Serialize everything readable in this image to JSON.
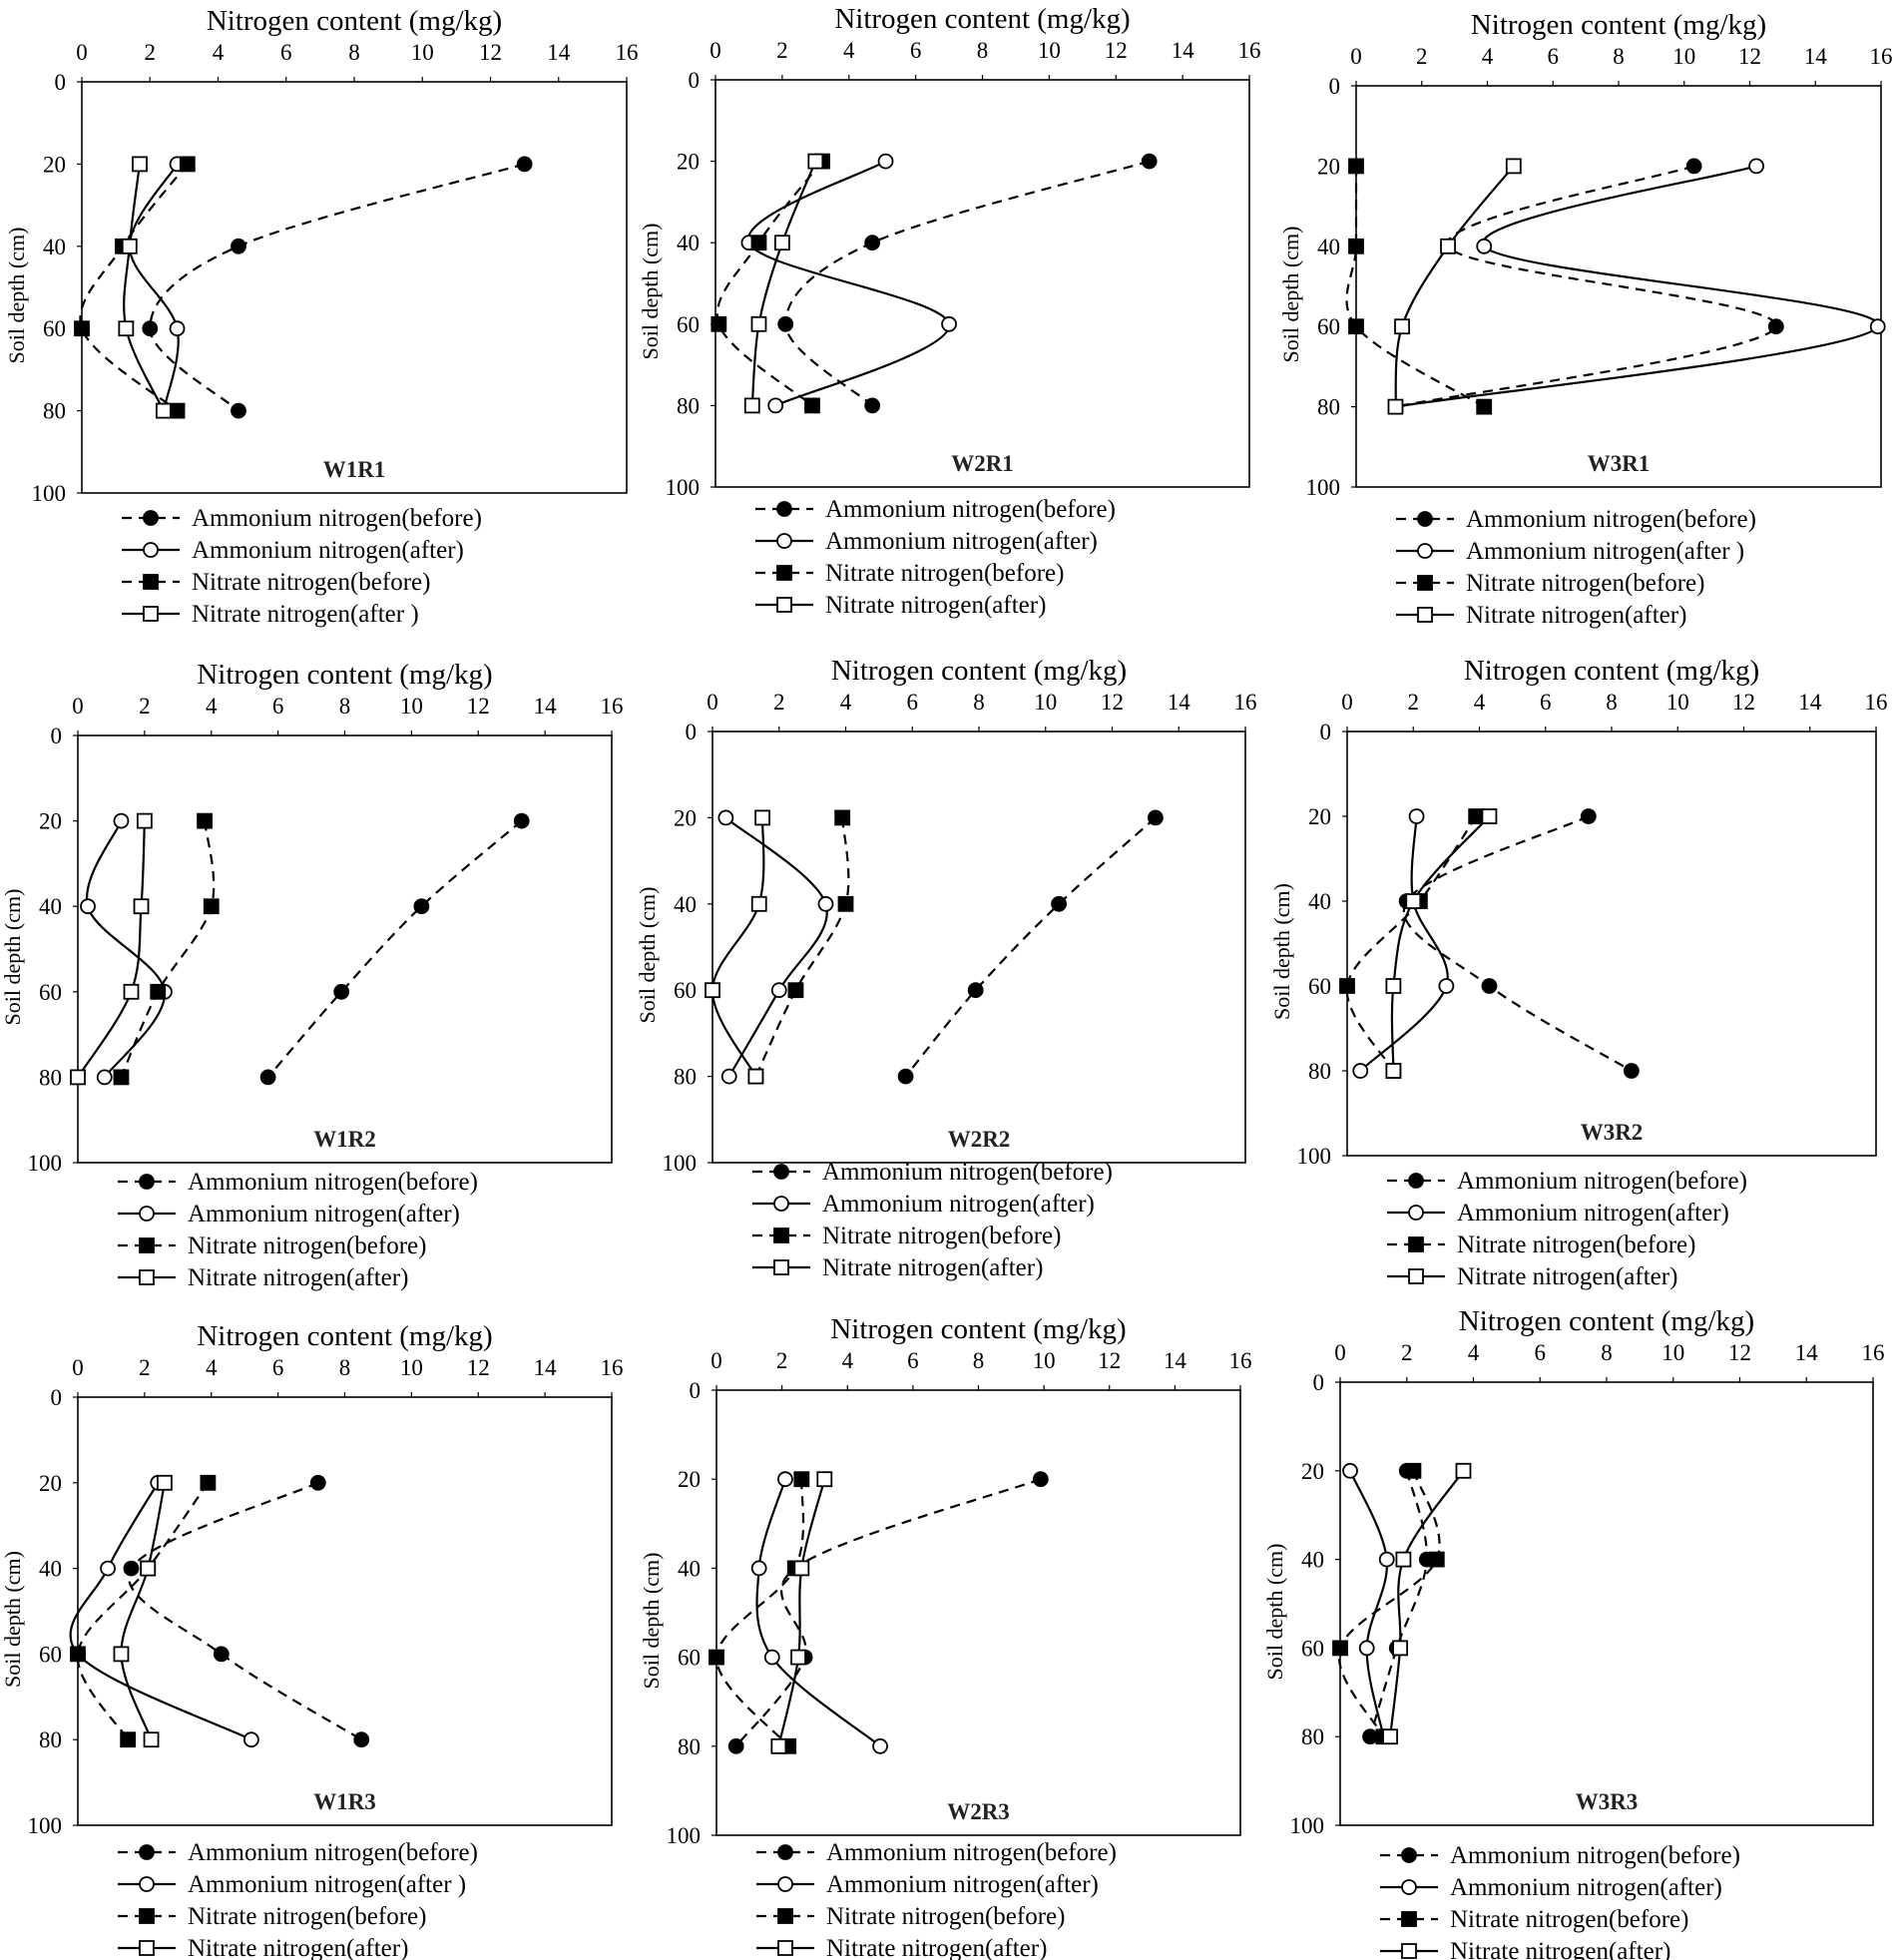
{
  "legend_labels": {
    "ammonium_before": "Ammonium nitrogen(before)",
    "ammonium_after": "Ammonium nitrogen(after)",
    "ammonium_after_sp": "Ammonium nitrogen(after )",
    "nitrate_before": "Nitrate nitrogen(before)",
    "nitrate_after": "Nitrate nitrogen(after)",
    "nitrate_after_sp": "Nitrate nitrogen(after )"
  },
  "chart_data": [
    {
      "type": "line",
      "title": "W1R1",
      "xlabel": "Nitrogen content (mg/kg)",
      "ylabel": "Soil depth (cm)",
      "xlim": [
        0,
        16
      ],
      "ylim": [
        0,
        100
      ],
      "x_ticks": [
        "0",
        "2",
        "4",
        "6",
        "8",
        "10",
        "12",
        "14",
        "16"
      ],
      "y_ticks": [
        "0",
        "20",
        "40",
        "60",
        "80",
        "100"
      ],
      "depths": [
        20,
        40,
        60,
        80
      ],
      "legend": [
        "Ammonium nitrogen(before)",
        "Ammonium nitrogen(after)",
        "Nitrate nitrogen(before)",
        "Nitrate nitrogen(after )"
      ],
      "series": [
        {
          "name": "Ammonium nitrogen(before)",
          "values": [
            13.0,
            4.6,
            2.0,
            4.6
          ]
        },
        {
          "name": "Ammonium nitrogen(after)",
          "values": [
            2.8,
            1.4,
            2.8,
            2.4
          ]
        },
        {
          "name": "Nitrate nitrogen(before)",
          "values": [
            3.1,
            1.2,
            0,
            2.8
          ]
        },
        {
          "name": "Nitrate nitrogen(after )",
          "values": [
            1.7,
            1.4,
            1.3,
            2.4
          ]
        }
      ]
    },
    {
      "type": "line",
      "title": "W2R1",
      "xlabel": "Nitrogen content (mg/kg)",
      "ylabel": "Soil depth (cm)",
      "xlim": [
        0,
        16
      ],
      "ylim": [
        0,
        100
      ],
      "x_ticks": [
        "0",
        "2",
        "4",
        "6",
        "8",
        "10",
        "12",
        "14",
        "16"
      ],
      "y_ticks": [
        "0",
        "20",
        "40",
        "60",
        "80",
        "100"
      ],
      "depths": [
        20,
        40,
        60,
        80
      ],
      "legend": [
        "Ammonium nitrogen(before)",
        "Ammonium nitrogen(after)",
        "Nitrate nitrogen(before)",
        "Nitrate nitrogen(after)"
      ],
      "series": [
        {
          "name": "Ammonium nitrogen(before)",
          "values": [
            13.0,
            4.7,
            2.1,
            4.7
          ]
        },
        {
          "name": "Ammonium nitrogen(after)",
          "values": [
            5.1,
            1.0,
            7.0,
            1.8
          ]
        },
        {
          "name": "Nitrate nitrogen(before)",
          "values": [
            3.2,
            1.3,
            0.1,
            2.9
          ]
        },
        {
          "name": "Nitrate nitrogen(after)",
          "values": [
            3.0,
            2.0,
            1.3,
            1.1
          ]
        }
      ]
    },
    {
      "type": "line",
      "title": "W3R1",
      "xlabel": "Nitrogen content (mg/kg)",
      "ylabel": "Soil depth (cm)",
      "xlim": [
        0,
        16
      ],
      "ylim": [
        0,
        100
      ],
      "x_ticks": [
        "0",
        "2",
        "4",
        "6",
        "8",
        "10",
        "12",
        "14",
        "16"
      ],
      "y_ticks": [
        "0",
        "20",
        "40",
        "60",
        "80",
        "100"
      ],
      "depths": [
        20,
        40,
        60,
        80
      ],
      "legend": [
        "Ammonium nitrogen(before)",
        "Ammonium nitrogen(after )",
        "Nitrate nitrogen(before)",
        "Nitrate nitrogen(after)"
      ],
      "series": [
        {
          "name": "Ammonium nitrogen(before)",
          "values": [
            10.3,
            2.8,
            12.8,
            1.2
          ]
        },
        {
          "name": "Ammonium nitrogen(after )",
          "values": [
            12.2,
            3.9,
            15.9,
            1.2
          ]
        },
        {
          "name": "Nitrate nitrogen(before)",
          "values": [
            0,
            0,
            0,
            3.9
          ]
        },
        {
          "name": "Nitrate nitrogen(after)",
          "values": [
            4.8,
            2.8,
            1.4,
            1.2
          ]
        }
      ]
    },
    {
      "type": "line",
      "title": "W1R2",
      "xlabel": "Nitrogen content (mg/kg)",
      "ylabel": "Soil depth (cm)",
      "xlim": [
        0,
        16
      ],
      "ylim": [
        0,
        100
      ],
      "x_ticks": [
        "0",
        "2",
        "4",
        "6",
        "8",
        "10",
        "12",
        "14",
        "16"
      ],
      "y_ticks": [
        "0",
        "20",
        "40",
        "60",
        "80",
        "100"
      ],
      "depths": [
        20,
        40,
        60,
        80
      ],
      "legend": [
        "Ammonium nitrogen(before)",
        "Ammonium nitrogen(after)",
        "Nitrate nitrogen(before)",
        "Nitrate nitrogen(after)"
      ],
      "series": [
        {
          "name": "Ammonium nitrogen(before)",
          "values": [
            13.3,
            10.3,
            7.9,
            5.7
          ]
        },
        {
          "name": "Ammonium nitrogen(after)",
          "values": [
            1.3,
            0.3,
            2.6,
            0.8
          ]
        },
        {
          "name": "Nitrate nitrogen(before)",
          "values": [
            3.8,
            4.0,
            2.4,
            1.3
          ]
        },
        {
          "name": "Nitrate nitrogen(after)",
          "values": [
            2.0,
            1.9,
            1.6,
            0
          ]
        }
      ]
    },
    {
      "type": "line",
      "title": "W2R2",
      "xlabel": "Nitrogen content (mg/kg)",
      "ylabel": "Soil depth (cm)",
      "xlim": [
        0,
        16
      ],
      "ylim": [
        0,
        100
      ],
      "x_ticks": [
        "0",
        "2",
        "4",
        "6",
        "8",
        "10",
        "12",
        "14",
        "16"
      ],
      "y_ticks": [
        "0",
        "20",
        "40",
        "60",
        "80",
        "100"
      ],
      "depths": [
        20,
        40,
        60,
        80
      ],
      "legend": [
        "Ammonium nitrogen(before)",
        "Ammonium nitrogen(after)",
        "Nitrate nitrogen(before)",
        "Nitrate nitrogen(after)"
      ],
      "series": [
        {
          "name": "Ammonium nitrogen(before)",
          "values": [
            13.3,
            10.4,
            7.9,
            5.8
          ]
        },
        {
          "name": "Ammonium nitrogen(after)",
          "values": [
            0.4,
            3.4,
            2.0,
            0.5
          ]
        },
        {
          "name": "Nitrate nitrogen(before)",
          "values": [
            3.9,
            4.0,
            2.5,
            1.3
          ]
        },
        {
          "name": "Nitrate nitrogen(after)",
          "values": [
            1.5,
            1.4,
            0,
            1.3
          ]
        }
      ]
    },
    {
      "type": "line",
      "title": "W3R2",
      "xlabel": "Nitrogen content (mg/kg)",
      "ylabel": "Soil depth (cm)",
      "xlim": [
        0,
        16
      ],
      "ylim": [
        0,
        100
      ],
      "x_ticks": [
        "0",
        "2",
        "4",
        "6",
        "8",
        "10",
        "12",
        "14",
        "16"
      ],
      "y_ticks": [
        "0",
        "20",
        "40",
        "60",
        "80",
        "100"
      ],
      "depths": [
        20,
        40,
        60,
        80
      ],
      "legend": [
        "Ammonium nitrogen(before)",
        "Ammonium nitrogen(after)",
        "Nitrate nitrogen(before)",
        "Nitrate nitrogen(after)"
      ],
      "series": [
        {
          "name": "Ammonium nitrogen(before)",
          "values": [
            7.3,
            1.8,
            4.3,
            8.6
          ]
        },
        {
          "name": "Ammonium nitrogen(after)",
          "values": [
            2.1,
            2.0,
            3.0,
            0.4
          ]
        },
        {
          "name": "Nitrate nitrogen(before)",
          "values": [
            3.9,
            2.2,
            0,
            1.4
          ]
        },
        {
          "name": "Nitrate nitrogen(after)",
          "values": [
            4.3,
            2.0,
            1.4,
            1.4
          ]
        }
      ]
    },
    {
      "type": "line",
      "title": "W1R3",
      "xlabel": "Nitrogen content (mg/kg)",
      "ylabel": "Soil depth (cm)",
      "xlim": [
        0,
        16
      ],
      "ylim": [
        0,
        100
      ],
      "x_ticks": [
        "0",
        "2",
        "4",
        "6",
        "8",
        "10",
        "12",
        "14",
        "16"
      ],
      "y_ticks": [
        "0",
        "20",
        "40",
        "60",
        "80",
        "100"
      ],
      "depths": [
        20,
        40,
        60,
        80
      ],
      "legend": [
        "Ammonium nitrogen(before)",
        "Ammonium nitrogen(after )",
        "Nitrate nitrogen(before)",
        "Nitrate nitrogen(after)"
      ],
      "series": [
        {
          "name": "Ammonium nitrogen(before)",
          "values": [
            7.2,
            1.6,
            4.3,
            8.5
          ]
        },
        {
          "name": "Ammonium nitrogen(after )",
          "values": [
            2.4,
            0.9,
            0,
            5.2
          ]
        },
        {
          "name": "Nitrate nitrogen(before)",
          "values": [
            3.9,
            2.1,
            0,
            1.5
          ]
        },
        {
          "name": "Nitrate nitrogen(after)",
          "values": [
            2.6,
            2.1,
            1.3,
            2.2
          ]
        }
      ]
    },
    {
      "type": "line",
      "title": "W2R3",
      "xlabel": "Nitrogen content (mg/kg)",
      "ylabel": "Soil depth (cm)",
      "xlim": [
        0,
        16
      ],
      "ylim": [
        0,
        100
      ],
      "x_ticks": [
        "0",
        "2",
        "4",
        "6",
        "8",
        "10",
        "12",
        "14",
        "16"
      ],
      "y_ticks": [
        "0",
        "20",
        "40",
        "60",
        "80",
        "100"
      ],
      "depths": [
        20,
        40,
        60,
        80
      ],
      "legend": [
        "Ammonium nitrogen(before)",
        "Ammonium nitrogen(after)",
        "Nitrate nitrogen(before)",
        "Nitrate nitrogen(after)"
      ],
      "series": [
        {
          "name": "Ammonium nitrogen(before)",
          "values": [
            9.9,
            2.4,
            2.7,
            0.6
          ]
        },
        {
          "name": "Ammonium nitrogen(after)",
          "values": [
            2.1,
            1.3,
            1.7,
            5.0
          ]
        },
        {
          "name": "Nitrate nitrogen(before)",
          "values": [
            2.6,
            2.4,
            0,
            2.2
          ]
        },
        {
          "name": "Nitrate nitrogen(after)",
          "values": [
            3.3,
            2.6,
            2.5,
            1.9
          ]
        }
      ]
    },
    {
      "type": "line",
      "title": "W3R3",
      "xlabel": "Nitrogen content (mg/kg)",
      "ylabel": "Soil depth (cm)",
      "xlim": [
        0,
        16
      ],
      "ylim": [
        0,
        100
      ],
      "x_ticks": [
        "0",
        "2",
        "4",
        "6",
        "8",
        "10",
        "12",
        "14",
        "16"
      ],
      "y_ticks": [
        "0",
        "20",
        "40",
        "60",
        "80",
        "100"
      ],
      "depths": [
        20,
        40,
        60,
        80
      ],
      "legend": [
        "Ammonium nitrogen(before)",
        "Ammonium nitrogen(after)",
        "Nitrate nitrogen(before)",
        "Nitrate nitrogen(after)"
      ],
      "series": [
        {
          "name": "Ammonium nitrogen(before)",
          "values": [
            2.0,
            2.6,
            1.7,
            0.9
          ]
        },
        {
          "name": "Ammonium nitrogen(after)",
          "values": [
            0.3,
            1.4,
            0.8,
            1.3
          ]
        },
        {
          "name": "Nitrate nitrogen(before)",
          "values": [
            2.2,
            2.9,
            0,
            1.3
          ]
        },
        {
          "name": "Nitrate nitrogen(after)",
          "values": [
            3.7,
            1.9,
            1.8,
            1.5
          ]
        }
      ]
    }
  ]
}
